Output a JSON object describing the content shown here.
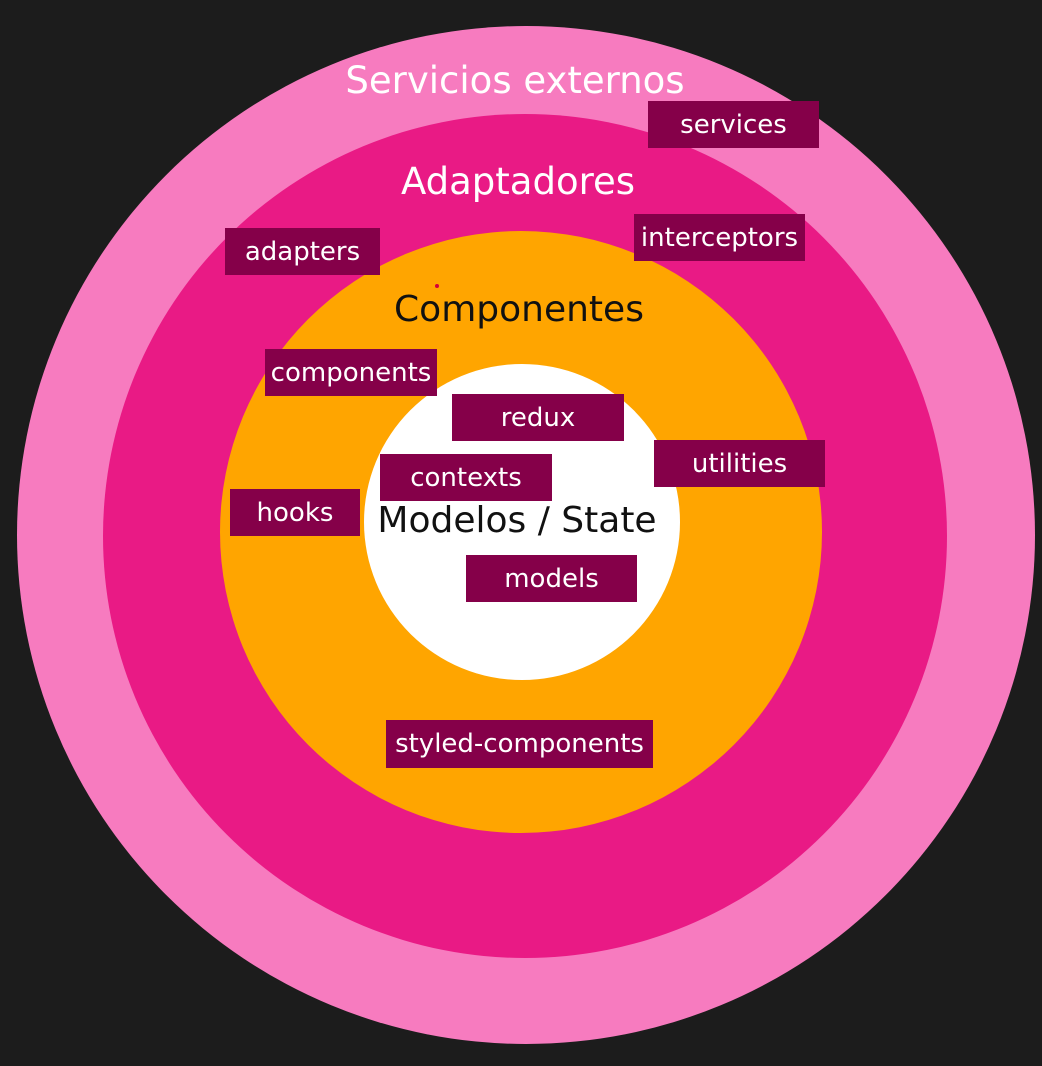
{
  "colors": {
    "background": "#1c1c1c",
    "outer_ring": "#f77bbf",
    "adapters_ring": "#e91a85",
    "components_ring": "#ffa500",
    "core": "#ffffff",
    "tag_bg": "#850049",
    "tag_text": "#ffffff",
    "ring_title_light": "#ffffff",
    "ring_title_dark": "#111111",
    "marker_dot": "#d4003a"
  },
  "rings": {
    "outer": {
      "title": "Servicios externos"
    },
    "adapters": {
      "title": "Adaptadores"
    },
    "components": {
      "title": "Componentes"
    },
    "core": {
      "title": "Modelos / State"
    }
  },
  "tags": {
    "services": "services",
    "adapters": "adapters",
    "interceptors": "interceptors",
    "components": "components",
    "redux": "redux",
    "contexts": "contexts",
    "utilities": "utilities",
    "hooks": "hooks",
    "models": "models",
    "styled_components": "styled-components"
  }
}
